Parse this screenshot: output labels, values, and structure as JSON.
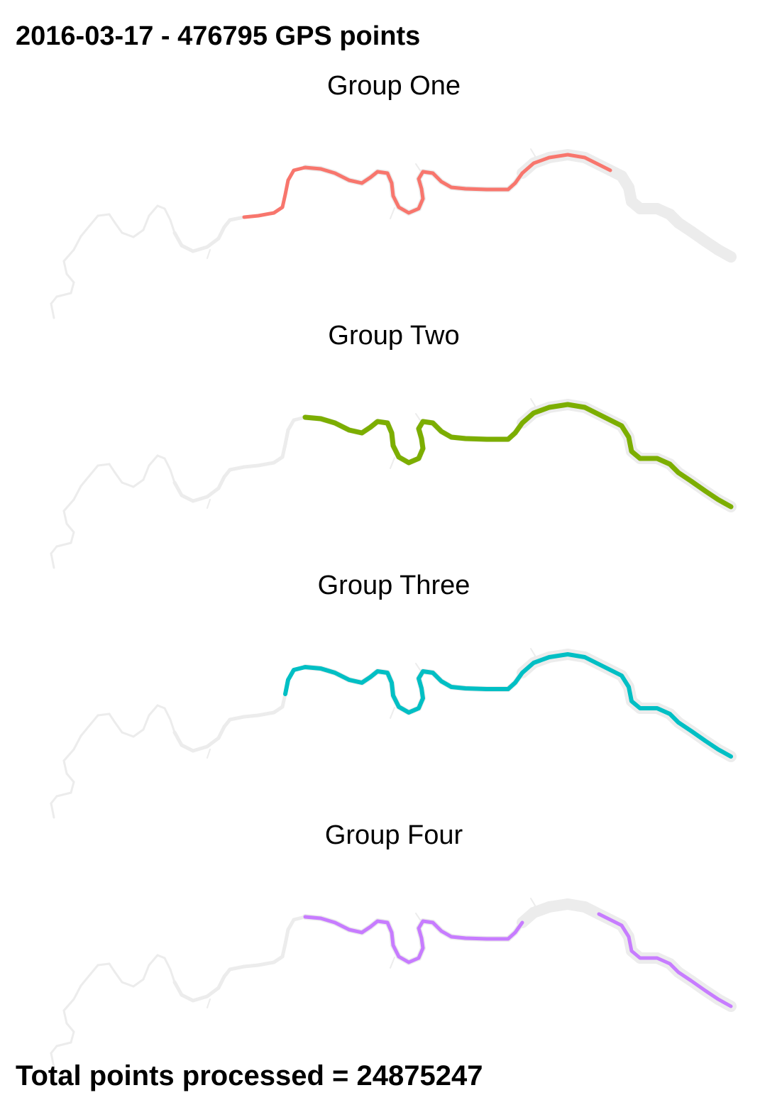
{
  "header": {
    "title": "2016-03-17 - 476795 GPS points"
  },
  "footer": {
    "text": "Total points processed = 24875247"
  },
  "colors": {
    "river": "#ececec",
    "background": "#ffffff"
  },
  "panels": [
    {
      "label": "Group One",
      "color": "#F8766D",
      "coverage": "west-central-to-east-central"
    },
    {
      "label": "Group Two",
      "color": "#7CAE00",
      "coverage": "central-to-east"
    },
    {
      "label": "Group Three",
      "color": "#00BFC4",
      "coverage": "west-central-to-east"
    },
    {
      "label": "Group Four",
      "color": "#C77CFF",
      "coverage": "central-and-east-segments"
    }
  ]
}
